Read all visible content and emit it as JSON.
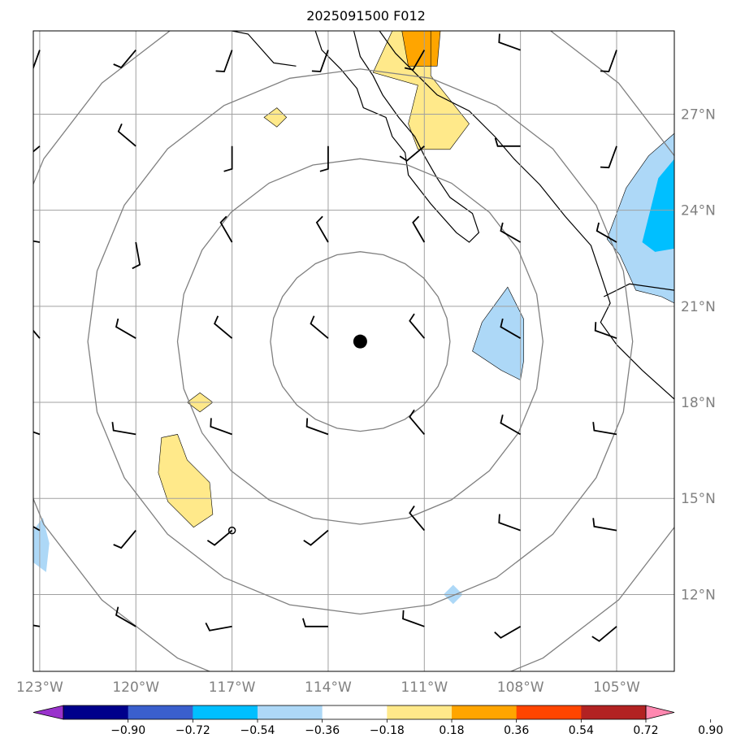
{
  "title": "2025091500 F012",
  "map": {
    "lon_range": [
      -123.2,
      -103.2
    ],
    "lat_range": [
      9.6,
      29.6
    ],
    "x_ticks": [
      {
        "value": -123,
        "label": "123°W"
      },
      {
        "value": -120,
        "label": "120°W"
      },
      {
        "value": -117,
        "label": "117°W"
      },
      {
        "value": -114,
        "label": "114°W"
      },
      {
        "value": -111,
        "label": "111°W"
      },
      {
        "value": -108,
        "label": "108°W"
      },
      {
        "value": -105,
        "label": "105°W"
      }
    ],
    "y_ticks": [
      {
        "value": 12,
        "label": "12°N"
      },
      {
        "value": 15,
        "label": "15°N"
      },
      {
        "value": 18,
        "label": "18°N"
      },
      {
        "value": 21,
        "label": "21°N"
      },
      {
        "value": 24,
        "label": "24°N"
      },
      {
        "value": 27,
        "label": "27°N"
      }
    ],
    "center": {
      "lon": -113.0,
      "lat": 19.9
    },
    "range_ring_radii_deg": [
      2.8,
      5.7,
      8.5,
      11.4
    ],
    "colorbar": {
      "ticks": [
        "−0.90",
        "−0.72",
        "−0.54",
        "−0.36",
        "−0.18",
        "0.18",
        "0.36",
        "0.54",
        "0.72",
        "0.90"
      ],
      "colors": [
        "#9932cc",
        "#00008b",
        "#3a5fcd",
        "#00bfff",
        "#add8f7",
        "#ffffff",
        "#ffe98a",
        "#ffa500",
        "#ff4500",
        "#b22222",
        "#ff88b0"
      ]
    }
  },
  "chart_data": {
    "type": "heatmap",
    "title": "2025091500 F012",
    "xlim": [
      -123.2,
      -103.2
    ],
    "ylim": [
      9.6,
      29.6
    ],
    "grid": true,
    "colorbar_levels": [
      -0.9,
      -0.72,
      -0.54,
      -0.36,
      -0.18,
      0.18,
      0.36,
      0.54,
      0.72,
      0.9
    ],
    "center_marker": {
      "lon": -113.0,
      "lat": 19.9
    },
    "wind_barb_grid": {
      "lons": [
        -123,
        -120,
        -117,
        -114,
        -111,
        -108,
        -105
      ],
      "lats": [
        11,
        14,
        17,
        20,
        23,
        26,
        29
      ],
      "direction_deg": [
        [
          280,
          300,
          260,
          270,
          290,
          240,
          230
        ],
        [
          300,
          220,
          230,
          230,
          320,
          290,
          280
        ],
        [
          290,
          280,
          290,
          290,
          320,
          300,
          280
        ],
        [
          320,
          300,
          310,
          310,
          320,
          300,
          290
        ],
        [
          280,
          170,
          330,
          330,
          330,
          300,
          300
        ],
        [
          230,
          310,
          180,
          180,
          230,
          270,
          200
        ],
        [
          200,
          220,
          200,
          200,
          210,
          290,
          200
        ]
      ]
    },
    "shaded_regions": [
      {
        "value_bin": "0.18 to 0.36",
        "polygon": [
          [
            -112.0,
            29.6
          ],
          [
            -110.8,
            29.6
          ],
          [
            -110.8,
            28.2
          ],
          [
            -109.6,
            26.7
          ],
          [
            -110.2,
            25.9
          ],
          [
            -111.2,
            25.9
          ],
          [
            -111.5,
            26.7
          ],
          [
            -111.2,
            27.9
          ],
          [
            -112.6,
            28.3
          ],
          [
            -112.0,
            29.6
          ]
        ]
      },
      {
        "value_bin": "0.36 to 0.54",
        "polygon": [
          [
            -111.7,
            29.6
          ],
          [
            -110.5,
            29.6
          ],
          [
            -110.6,
            28.5
          ],
          [
            -111.5,
            28.5
          ],
          [
            -111.7,
            29.6
          ]
        ]
      },
      {
        "value_bin": "0.18 to 0.36",
        "polygon": [
          [
            -115.6,
            27.2
          ],
          [
            -115.3,
            26.9
          ],
          [
            -115.6,
            26.6
          ],
          [
            -116.0,
            26.9
          ],
          [
            -115.6,
            27.2
          ]
        ]
      },
      {
        "value_bin": "0.18 to 0.36",
        "polygon": [
          [
            -119.2,
            16.9
          ],
          [
            -118.7,
            17.0
          ],
          [
            -118.4,
            16.2
          ],
          [
            -117.7,
            15.5
          ],
          [
            -117.6,
            14.5
          ],
          [
            -118.2,
            14.1
          ],
          [
            -119.0,
            14.9
          ],
          [
            -119.3,
            15.8
          ],
          [
            -119.2,
            16.9
          ]
        ]
      },
      {
        "value_bin": "0.18 to 0.36",
        "polygon": [
          [
            -118.0,
            18.3
          ],
          [
            -117.6,
            18.0
          ],
          [
            -118.0,
            17.7
          ],
          [
            -118.4,
            18.0
          ],
          [
            -118.0,
            18.3
          ]
        ]
      },
      {
        "value_bin": "-0.36 to -0.18",
        "polygon": [
          [
            -108.4,
            21.6
          ],
          [
            -107.9,
            20.6
          ],
          [
            -107.9,
            19.3
          ],
          [
            -108.0,
            18.7
          ],
          [
            -108.6,
            19.0
          ],
          [
            -109.5,
            19.6
          ],
          [
            -109.2,
            20.5
          ],
          [
            -108.4,
            21.6
          ]
        ]
      },
      {
        "value_bin": "-0.36 to -0.18",
        "polygon": [
          [
            -103.2,
            26.4
          ],
          [
            -104.0,
            25.7
          ],
          [
            -104.7,
            24.7
          ],
          [
            -105.3,
            23.1
          ],
          [
            -104.9,
            22.6
          ],
          [
            -104.4,
            21.5
          ],
          [
            -103.6,
            21.3
          ],
          [
            -103.2,
            21.1
          ],
          [
            -103.2,
            26.4
          ]
        ]
      },
      {
        "value_bin": "-0.54 to -0.36",
        "polygon": [
          [
            -103.2,
            25.6
          ],
          [
            -103.7,
            25.0
          ],
          [
            -103.9,
            24.2
          ],
          [
            -104.2,
            23.0
          ],
          [
            -103.8,
            22.7
          ],
          [
            -103.2,
            22.8
          ],
          [
            -103.2,
            25.6
          ]
        ]
      },
      {
        "value_bin": "-0.36 to -0.18",
        "polygon": [
          [
            -123.2,
            14.0
          ],
          [
            -122.9,
            14.4
          ],
          [
            -122.7,
            13.6
          ],
          [
            -122.8,
            12.7
          ],
          [
            -123.2,
            13.0
          ],
          [
            -123.2,
            14.0
          ]
        ]
      },
      {
        "value_bin": "-0.36 to -0.18",
        "polygon": [
          [
            -110.1,
            12.3
          ],
          [
            -109.8,
            12.0
          ],
          [
            -110.1,
            11.7
          ],
          [
            -110.4,
            12.0
          ],
          [
            -110.1,
            12.3
          ]
        ]
      }
    ]
  }
}
